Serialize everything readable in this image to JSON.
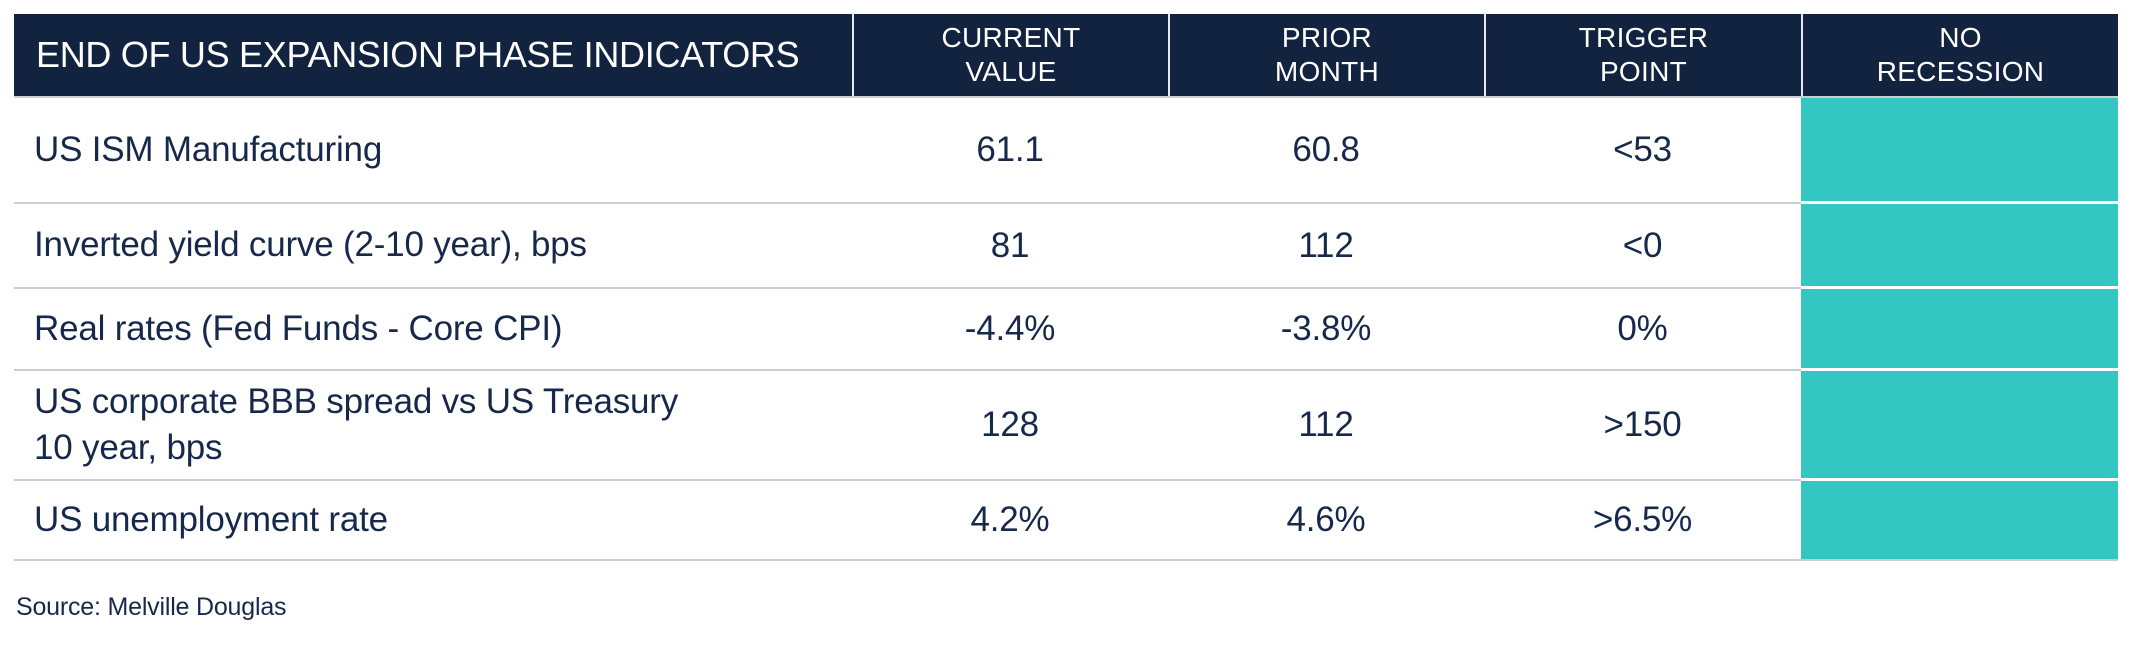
{
  "table": {
    "title": "END OF US EXPANSION PHASE INDICATORS",
    "columns": [
      [
        "CURRENT",
        "VALUE"
      ],
      [
        "PRIOR",
        "MONTH"
      ],
      [
        "TRIGGER",
        "POINT"
      ],
      [
        "NO",
        "RECESSION"
      ]
    ],
    "rows": [
      {
        "indicator": "US ISM Manufacturing",
        "current_value": "61.1",
        "prior_month": "60.8",
        "trigger_point": "<53",
        "status": "no-recession"
      },
      {
        "indicator": "Inverted yield curve (2-10 year), bps",
        "current_value": "81",
        "prior_month": "112",
        "trigger_point": "<0",
        "status": "no-recession"
      },
      {
        "indicator": "Real rates (Fed Funds - Core CPI)",
        "current_value": "-4.4%",
        "prior_month": "-3.8%",
        "trigger_point": "0%",
        "status": "no-recession"
      },
      {
        "indicator": [
          "US corporate BBB spread vs US Treasury",
          "10 year, bps"
        ],
        "current_value": "128",
        "prior_month": "112",
        "trigger_point": ">150",
        "status": "no-recession"
      },
      {
        "indicator": "US unemployment rate",
        "current_value": "4.2%",
        "prior_month": "4.6%",
        "trigger_point": ">6.5%",
        "status": "no-recession"
      }
    ],
    "source": "Source: Melville Douglas"
  },
  "colors": {
    "header_bg": "#12233F",
    "no_recession_teal": "#34C7C2",
    "text_navy": "#17294A",
    "row_separator": "#C9CED2"
  }
}
